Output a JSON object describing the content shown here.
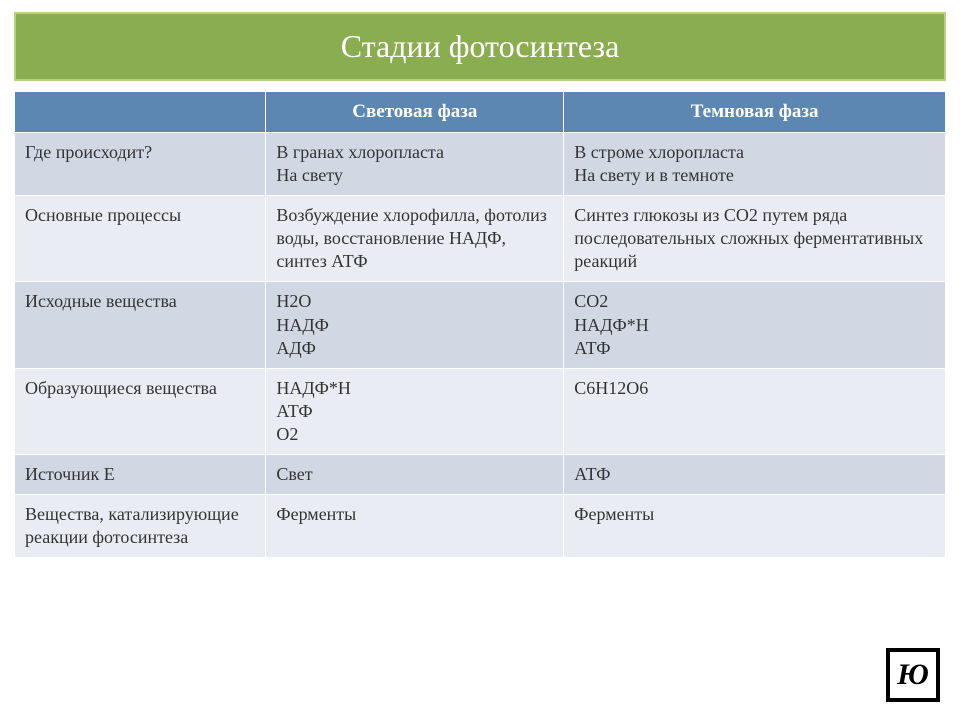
{
  "title": "Стадии фотосинтеза",
  "columns": [
    "Световая фаза",
    "Темновая фаза"
  ],
  "rows": [
    {
      "label": "Где происходит?",
      "light": "В гранах хлоропласта\nНа свету",
      "dark": "В строме хлоропласта\nНа свету и в темноте"
    },
    {
      "label": "Основные процессы",
      "light": "Возбуждение хлорофилла, фотолиз воды, восстановление НАДФ, синтез АТФ",
      "dark": "Синтез глюкозы из CO2 путем ряда последовательных сложных ферментативных реакций"
    },
    {
      "label": "Исходные вещества",
      "light": "H2O\nНАДФ\nАДФ",
      "dark": "CO2\nНАДФ*Н\nАТФ"
    },
    {
      "label": "Образующиеся вещества",
      "light": "НАДФ*Н\nАТФ\nO2",
      "dark": "C6H12O6"
    },
    {
      "label": "Источник Е",
      "light": "Свет",
      "dark": "АТФ"
    },
    {
      "label": "Вещества, катализирующие реакции фотосинтеза",
      "light": "Ферменты",
      "dark": "Ферменты"
    }
  ],
  "colors": {
    "title_bg": "#8aad4f",
    "title_border": "#b9d186",
    "header_bg": "#5b87b2",
    "row_even": "#d1d8e4",
    "row_odd": "#e9edf3",
    "border": "#ffffff"
  },
  "logo": "Ю"
}
